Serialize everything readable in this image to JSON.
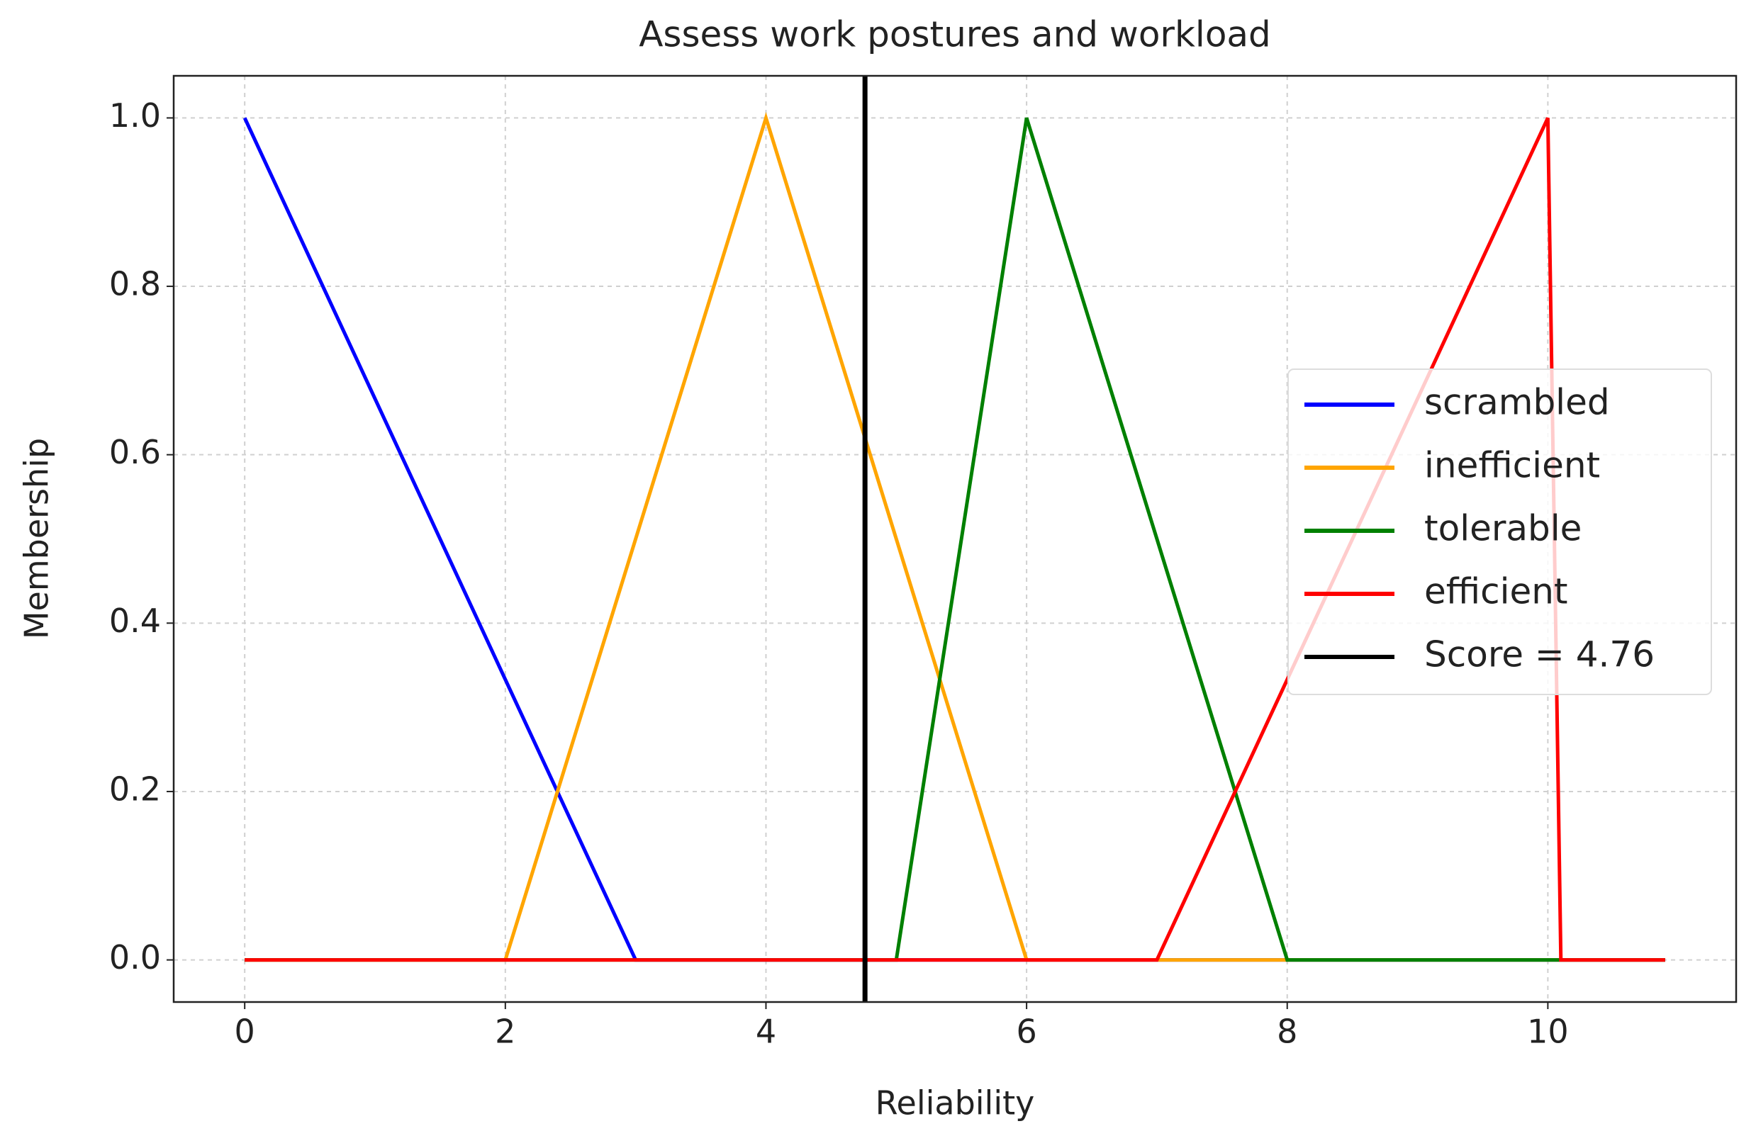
{
  "chart_data": {
    "type": "line",
    "title": "Assess work postures and workload",
    "x_label": "Reliability",
    "y_label": "Membership",
    "x": [
      0,
      2,
      3,
      4,
      5,
      6,
      7,
      8,
      10,
      10.1,
      10.9
    ],
    "series": [
      {
        "name": "scrambled",
        "color": "#0000ff",
        "values": [
          1,
          0.333,
          0,
          0,
          0,
          0,
          0,
          0,
          0,
          0,
          0
        ]
      },
      {
        "name": "inefficient",
        "color": "#ffa500",
        "values": [
          0,
          0,
          0.5,
          1,
          0.5,
          0,
          0,
          0,
          0,
          0,
          0
        ]
      },
      {
        "name": "tolerable",
        "color": "#008000",
        "values": [
          0,
          0,
          0,
          0,
          0,
          1,
          0.5,
          0,
          0,
          0,
          0
        ]
      },
      {
        "name": "efficient",
        "color": "#ff0000",
        "values": [
          0,
          0,
          0,
          0,
          0,
          0,
          0,
          0.333,
          1,
          0,
          0
        ]
      }
    ],
    "score": {
      "label": "Score = 4.76",
      "value": 4.76,
      "color": "#000000"
    },
    "xlim": [
      -0.545,
      11.445
    ],
    "ylim": [
      -0.05,
      1.05
    ],
    "xticks": [
      0,
      2,
      4,
      6,
      8,
      10
    ],
    "yticks": [
      {
        "value": 0,
        "label": "0.0"
      },
      {
        "value": 0.2,
        "label": "0.2"
      },
      {
        "value": 0.4,
        "label": "0.4"
      },
      {
        "value": 0.6,
        "label": "0.6"
      },
      {
        "value": 0.8,
        "label": "0.8"
      },
      {
        "value": 1,
        "label": "1.0"
      }
    ],
    "grid": true,
    "legend": "center right"
  }
}
